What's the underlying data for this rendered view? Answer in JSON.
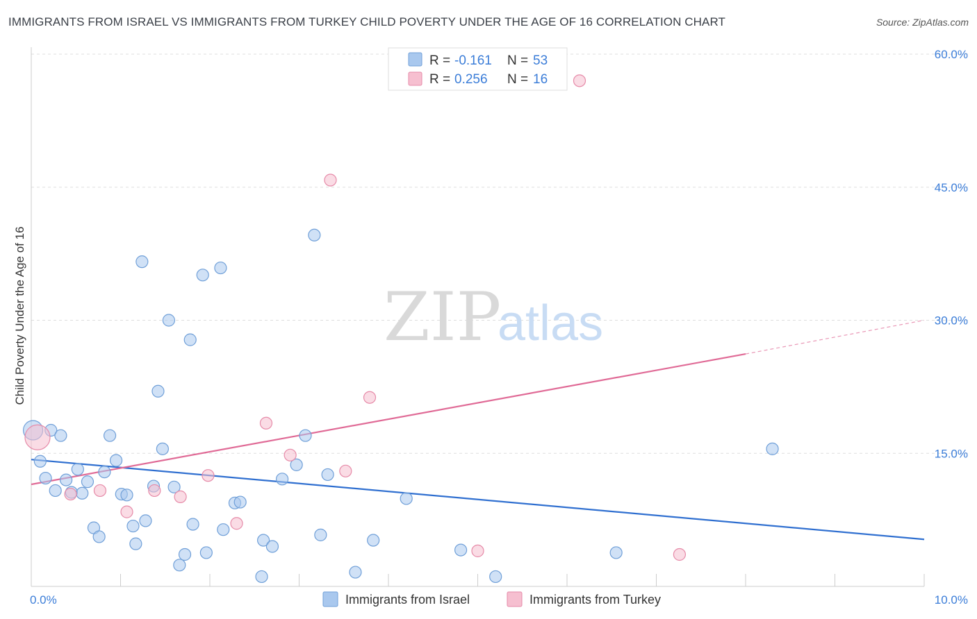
{
  "title": "IMMIGRANTS FROM ISRAEL VS IMMIGRANTS FROM TURKEY CHILD POVERTY UNDER THE AGE OF 16 CORRELATION CHART",
  "source": "Source: ZipAtlas.com",
  "watermark": {
    "zip": "ZIP",
    "atlas": "atlas"
  },
  "colors": {
    "israel_fill": "#a9c8ee",
    "israel_stroke": "#6f9fd8",
    "israel_line": "#2f6fd0",
    "turkey_fill": "#f6bfd0",
    "turkey_stroke": "#e68aa8",
    "turkey_line": "#e06a96",
    "axis_text": "#3b7dd8",
    "grid": "#dddddd"
  },
  "legend": {
    "rows": [
      {
        "r_label": "R = ",
        "r_value": "-0.161",
        "n_label": "N = ",
        "n_value": "53"
      },
      {
        "r_label": "R = ",
        "r_value": "0.256",
        "n_label": "N = ",
        "n_value": "16"
      }
    ]
  },
  "chart_data": {
    "type": "scatter",
    "title": "IMMIGRANTS FROM ISRAEL VS IMMIGRANTS FROM TURKEY CHILD POVERTY UNDER THE AGE OF 16 CORRELATION CHART",
    "xlabel": "",
    "ylabel": "Child Poverty Under the Age of 16",
    "xlim": [
      0,
      10
    ],
    "ylim": [
      0,
      60
    ],
    "x_tick_labels": [
      "0.0%",
      "10.0%"
    ],
    "y_ticks": [
      15,
      30,
      45,
      60
    ],
    "y_tick_labels": [
      "15.0%",
      "30.0%",
      "45.0%",
      "60.0%"
    ],
    "grid": true,
    "series": [
      {
        "name": "Immigrants from Israel",
        "points": [
          [
            0.02,
            17.6
          ],
          [
            0.1,
            14.1
          ],
          [
            0.16,
            12.2
          ],
          [
            0.22,
            17.6
          ],
          [
            0.27,
            10.8
          ],
          [
            0.33,
            17.0
          ],
          [
            0.39,
            12.0
          ],
          [
            0.45,
            10.6
          ],
          [
            0.52,
            13.2
          ],
          [
            0.57,
            10.5
          ],
          [
            0.63,
            11.8
          ],
          [
            0.7,
            6.6
          ],
          [
            0.76,
            5.6
          ],
          [
            0.82,
            12.9
          ],
          [
            0.88,
            17.0
          ],
          [
            0.95,
            14.2
          ],
          [
            1.01,
            10.4
          ],
          [
            1.07,
            10.3
          ],
          [
            1.14,
            6.8
          ],
          [
            1.17,
            4.8
          ],
          [
            1.24,
            36.6
          ],
          [
            1.28,
            7.4
          ],
          [
            1.37,
            11.3
          ],
          [
            1.42,
            22.0
          ],
          [
            1.47,
            15.5
          ],
          [
            1.54,
            30.0
          ],
          [
            1.6,
            11.2
          ],
          [
            1.66,
            2.4
          ],
          [
            1.72,
            3.6
          ],
          [
            1.78,
            27.8
          ],
          [
            1.81,
            7.0
          ],
          [
            1.92,
            35.1
          ],
          [
            1.96,
            3.8
          ],
          [
            2.12,
            35.9
          ],
          [
            2.15,
            6.4
          ],
          [
            2.28,
            9.4
          ],
          [
            2.34,
            9.5
          ],
          [
            2.58,
            1.1
          ],
          [
            2.6,
            5.2
          ],
          [
            2.7,
            4.5
          ],
          [
            2.81,
            12.1
          ],
          [
            2.97,
            13.7
          ],
          [
            3.07,
            17.0
          ],
          [
            3.17,
            39.6
          ],
          [
            3.24,
            5.8
          ],
          [
            3.32,
            12.6
          ],
          [
            3.63,
            1.6
          ],
          [
            3.83,
            5.2
          ],
          [
            4.2,
            9.9
          ],
          [
            4.81,
            4.1
          ],
          [
            5.2,
            1.1
          ],
          [
            6.55,
            3.8
          ],
          [
            8.3,
            15.5
          ]
        ],
        "trend": {
          "x": [
            0,
            10
          ],
          "y": [
            14.3,
            5.3
          ]
        }
      },
      {
        "name": "Immigrants from Turkey",
        "points": [
          [
            0.07,
            16.8
          ],
          [
            0.44,
            10.4
          ],
          [
            0.77,
            10.8
          ],
          [
            1.07,
            8.4
          ],
          [
            1.38,
            10.8
          ],
          [
            1.67,
            10.1
          ],
          [
            1.98,
            12.5
          ],
          [
            2.3,
            7.1
          ],
          [
            2.63,
            18.4
          ],
          [
            2.9,
            14.8
          ],
          [
            3.35,
            45.8
          ],
          [
            3.52,
            13.0
          ],
          [
            3.79,
            21.3
          ],
          [
            5.0,
            4.0
          ],
          [
            6.14,
            57.0
          ],
          [
            7.26,
            3.6
          ]
        ],
        "trend": {
          "x": [
            0,
            8.0
          ],
          "y": [
            11.5,
            26.2
          ],
          "dashed_to": {
            "x": 10,
            "y": 30.0
          }
        }
      }
    ]
  },
  "bottom_legend": [
    {
      "label": "Immigrants from Israel"
    },
    {
      "label": "Immigrants from Turkey"
    }
  ]
}
